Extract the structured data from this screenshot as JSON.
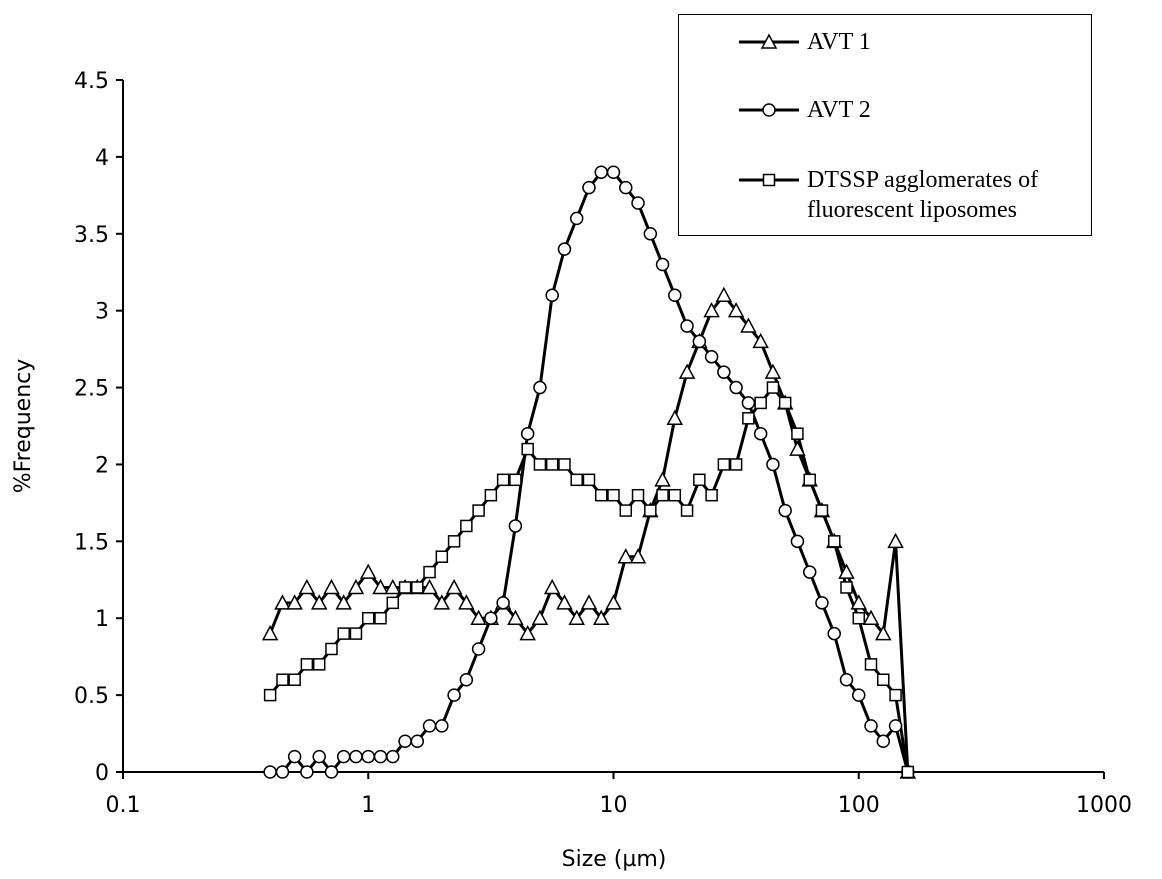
{
  "chart_data": {
    "type": "line",
    "x_label": "Size (µm)",
    "y_label": "%Frequency",
    "x_scale": "log",
    "xlim": [
      0.1,
      1000
    ],
    "xticks": [
      0.1,
      1,
      10,
      100,
      1000
    ],
    "ylim": [
      0,
      4.5
    ],
    "yticks": [
      0,
      0.5,
      1,
      1.5,
      2,
      2.5,
      3,
      3.5,
      4,
      4.5
    ],
    "x": [
      0.398,
      0.447,
      0.501,
      0.562,
      0.631,
      0.708,
      0.794,
      0.891,
      1,
      1.122,
      1.259,
      1.413,
      1.585,
      1.778,
      1.995,
      2.239,
      2.512,
      2.818,
      3.162,
      3.548,
      3.981,
      4.467,
      5.012,
      5.623,
      6.31,
      7.079,
      7.943,
      8.913,
      10,
      11.22,
      12.59,
      14.13,
      15.85,
      17.78,
      19.95,
      22.39,
      25.12,
      28.18,
      31.62,
      35.48,
      39.81,
      44.67,
      50.12,
      56.23,
      63.1,
      70.79,
      79.43,
      89.13,
      100,
      112.2,
      125.9,
      141.3,
      158.5
    ],
    "series": [
      {
        "name": "AVT 1",
        "color": "#000000",
        "marker": "triangle",
        "values": [
          0.9,
          1.1,
          1.1,
          1.2,
          1.1,
          1.2,
          1.1,
          1.2,
          1.3,
          1.2,
          1.2,
          1.2,
          1.2,
          1.2,
          1.1,
          1.2,
          1.1,
          1.0,
          1.0,
          1.1,
          1.0,
          0.9,
          1.0,
          1.2,
          1.1,
          1.0,
          1.1,
          1.0,
          1.1,
          1.4,
          1.4,
          1.7,
          1.9,
          2.3,
          2.6,
          2.8,
          3.0,
          3.1,
          3.0,
          2.9,
          2.8,
          2.6,
          2.4,
          2.1,
          1.9,
          1.7,
          1.5,
          1.3,
          1.1,
          1.0,
          0.9,
          1.5,
          0
        ]
      },
      {
        "name": "AVT 2",
        "color": "#000000",
        "marker": "circle",
        "values": [
          0,
          0,
          0.1,
          0,
          0.1,
          0,
          0.1,
          0.1,
          0.1,
          0.1,
          0.1,
          0.2,
          0.2,
          0.3,
          0.3,
          0.5,
          0.6,
          0.8,
          1.0,
          1.1,
          1.6,
          2.2,
          2.5,
          3.1,
          3.4,
          3.6,
          3.8,
          3.9,
          3.9,
          3.8,
          3.7,
          3.5,
          3.3,
          3.1,
          2.9,
          2.8,
          2.7,
          2.6,
          2.5,
          2.4,
          2.2,
          2.0,
          1.7,
          1.5,
          1.3,
          1.1,
          0.9,
          0.6,
          0.5,
          0.3,
          0.2,
          0.3,
          0
        ]
      },
      {
        "name": "DTSSP agglomerates of fluorescent liposomes",
        "color": "#000000",
        "marker": "square",
        "values": [
          0.5,
          0.6,
          0.6,
          0.7,
          0.7,
          0.8,
          0.9,
          0.9,
          1.0,
          1.0,
          1.1,
          1.2,
          1.2,
          1.3,
          1.4,
          1.5,
          1.6,
          1.7,
          1.8,
          1.9,
          1.9,
          2.1,
          2.0,
          2.0,
          2.0,
          1.9,
          1.9,
          1.8,
          1.8,
          1.7,
          1.8,
          1.7,
          1.8,
          1.8,
          1.7,
          1.9,
          1.8,
          2.0,
          2.0,
          2.3,
          2.4,
          2.5,
          2.4,
          2.2,
          1.9,
          1.7,
          1.5,
          1.2,
          1.0,
          0.7,
          0.6,
          0.5,
          0
        ]
      }
    ],
    "grid": false,
    "legend_position": "upper right"
  }
}
